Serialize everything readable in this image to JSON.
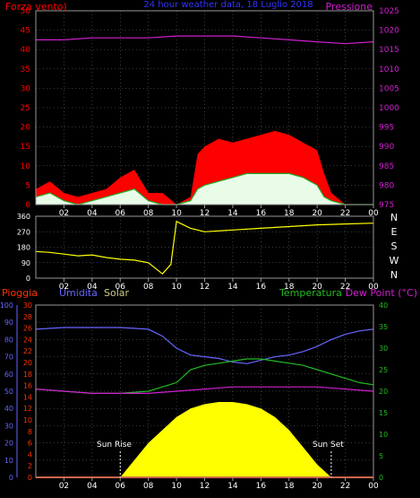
{
  "colors": {
    "background": "#000000",
    "axis": "#999999",
    "grid": "#777777",
    "wind_max": "#ff0000",
    "wind_avg": "#22aa22",
    "wind_fill": "#e8fce8",
    "pressure": "#d020d0",
    "direction": "#ffff00",
    "humidity": "#6666ff",
    "temperature": "#22bb22",
    "dew_point": "#d020d0",
    "solar": "#ffff00",
    "rain": "#ff3300",
    "title": "#3333ff",
    "solar_label": "#cccc88"
  },
  "chart_data": [
    {
      "type": "line",
      "panel": "wind-pressure",
      "title": "24 hour weather data, 18 Luglio 2018",
      "left_label": "Forza vento)",
      "right_label": "Pressione",
      "x_ticks": [
        "02",
        "04",
        "06",
        "08",
        "10",
        "12",
        "14",
        "16",
        "18",
        "20",
        "22",
        "00"
      ],
      "x_range_hours": [
        0,
        24
      ],
      "left_ticks": [
        "0",
        "5",
        "10",
        "15",
        "20",
        "25",
        "30",
        "35",
        "40",
        "45",
        "50"
      ],
      "left_range": [
        0,
        50
      ],
      "right_ticks": [
        "975",
        "980",
        "985",
        "990",
        "995",
        "1000",
        "1005",
        "1010",
        "1015",
        "1020",
        "1025"
      ],
      "right_range": [
        975,
        1025
      ],
      "grid": true,
      "series": [
        {
          "name": "Forza vento",
          "kind": "gust",
          "x_hours": [
            0,
            1,
            2,
            3,
            4,
            5,
            6,
            7,
            8,
            9,
            10,
            11,
            11.5,
            12,
            13,
            14,
            15,
            16,
            17,
            18,
            19,
            20,
            20.5,
            21,
            22,
            23,
            24
          ],
          "values": [
            4,
            6,
            3,
            2,
            3,
            4,
            7,
            9,
            3,
            3,
            0,
            2,
            13,
            15,
            17,
            16,
            17,
            18,
            19,
            18,
            16,
            14,
            8,
            3,
            0,
            0,
            0
          ]
        },
        {
          "name": "Forza vento media",
          "kind": "avg",
          "x_hours": [
            0,
            1,
            2,
            3,
            4,
            5,
            6,
            7,
            8,
            9,
            10,
            11,
            11.5,
            12,
            13,
            14,
            15,
            16,
            17,
            18,
            19,
            20,
            20.5,
            21,
            22,
            23,
            24
          ],
          "values": [
            2,
            3,
            1,
            0,
            1,
            2,
            3,
            4,
            1,
            0,
            0,
            1,
            4,
            5,
            6,
            7,
            8,
            8,
            8,
            8,
            7,
            5,
            2,
            1,
            0,
            0,
            0
          ]
        },
        {
          "name": "Pressione",
          "kind": "pressure",
          "x_hours": [
            0,
            2,
            4,
            6,
            8,
            10,
            12,
            14,
            16,
            18,
            20,
            22,
            24
          ],
          "values": [
            1017.5,
            1017.5,
            1018,
            1018,
            1018,
            1018.5,
            1018.5,
            1018.5,
            1018,
            1017.5,
            1017,
            1016.5,
            1017
          ]
        }
      ]
    },
    {
      "type": "line",
      "panel": "wind-direction",
      "left_ticks": [
        "0",
        "90",
        "180",
        "270",
        "360"
      ],
      "left_range": [
        0,
        360
      ],
      "right_ticks": [
        "N",
        "W",
        "S",
        "E",
        "N"
      ],
      "x_ticks": [
        "02",
        "04",
        "06",
        "08",
        "10",
        "12",
        "14",
        "16",
        "18",
        "20",
        "22",
        "00"
      ],
      "grid": true,
      "series": [
        {
          "name": "Direzione",
          "x_hours": [
            0,
            1,
            2,
            3,
            4,
            5,
            6,
            7,
            8,
            9,
            9.6,
            10,
            11,
            12,
            14,
            16,
            18,
            20,
            22,
            24
          ],
          "values": [
            155,
            150,
            140,
            130,
            135,
            120,
            110,
            105,
            90,
            25,
            80,
            330,
            290,
            270,
            280,
            290,
            300,
            310,
            315,
            320
          ]
        }
      ]
    },
    {
      "type": "line",
      "panel": "humidity-temperature-solar",
      "labels": {
        "rain": "Pioggia",
        "humidity": "Umidita",
        "solar": "Solar",
        "temperature": "Temperatura",
        "dew_point": "Dew Point (°C)"
      },
      "humidity_ticks": [
        "0",
        "10",
        "20",
        "30",
        "40",
        "50",
        "60",
        "70",
        "80",
        "90",
        "100"
      ],
      "humidity_range": [
        0,
        100
      ],
      "rain_ticks": [
        "0",
        "2",
        "4",
        "6",
        "8",
        "10",
        "12",
        "14",
        "16",
        "18",
        "20",
        "22",
        "24",
        "26",
        "28",
        "30"
      ],
      "rain_range": [
        0,
        30
      ],
      "temp_ticks": [
        "0",
        "5",
        "10",
        "15",
        "20",
        "25",
        "30",
        "35",
        "40"
      ],
      "temp_range": [
        0,
        40
      ],
      "x_ticks": [
        "02",
        "04",
        "06",
        "08",
        "10",
        "12",
        "14",
        "16",
        "18",
        "20",
        "22",
        "00"
      ],
      "annotations": {
        "sun_rise": "Sun Rise",
        "sun_set": "Sun Set",
        "sun_rise_hour": 6.0,
        "sun_set_hour": 21.0
      },
      "grid": true,
      "series": [
        {
          "name": "Umidita",
          "kind": "humidity",
          "x_hours": [
            0,
            2,
            4,
            6,
            8,
            9,
            10,
            11,
            12,
            13,
            14,
            15,
            16,
            17,
            18,
            19,
            20,
            21,
            22,
            23,
            24
          ],
          "values": [
            86,
            87,
            87,
            87,
            86,
            82,
            75,
            71,
            70,
            69,
            67,
            66,
            68,
            70,
            71,
            73,
            76,
            80,
            83,
            85,
            86
          ]
        },
        {
          "name": "Temperatura",
          "kind": "temperature",
          "x_hours": [
            0,
            2,
            4,
            6,
            8,
            10,
            11,
            12,
            13,
            14,
            15,
            16,
            17,
            18,
            19,
            20,
            21,
            22,
            23,
            24
          ],
          "values": [
            20.5,
            20,
            19.5,
            19.5,
            20,
            22,
            25,
            26,
            26.5,
            27,
            27.5,
            27.5,
            27,
            26.5,
            26,
            25,
            24,
            23,
            22,
            21.5
          ]
        },
        {
          "name": "Dew Point",
          "kind": "dew_point",
          "x_hours": [
            0,
            2,
            4,
            6,
            8,
            10,
            12,
            14,
            16,
            18,
            20,
            22,
            24
          ],
          "values": [
            20.5,
            20,
            19.5,
            19.5,
            19.5,
            20,
            20.5,
            21,
            21,
            21,
            21,
            20.5,
            20
          ]
        },
        {
          "name": "Solar",
          "kind": "solar_area",
          "x_hours": [
            6,
            8,
            10,
            11,
            12,
            13,
            14,
            15,
            16,
            17,
            18,
            19,
            20,
            21
          ],
          "values": [
            0,
            8,
            14,
            16,
            17,
            17.5,
            17.5,
            17,
            16,
            14,
            11,
            7,
            3,
            0
          ]
        },
        {
          "name": "Pioggia",
          "kind": "rain",
          "x_hours": [
            0,
            24
          ],
          "values": [
            0,
            0
          ]
        }
      ]
    }
  ]
}
